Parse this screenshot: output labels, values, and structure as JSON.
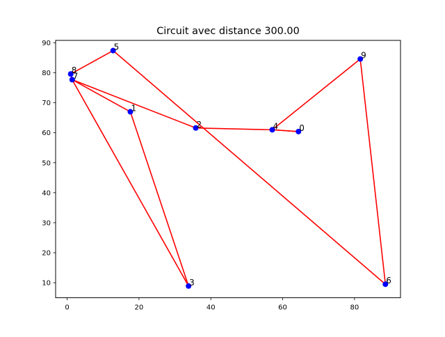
{
  "chart_data": {
    "type": "scatter",
    "title": "Circuit avec distance 300.00",
    "xlabel": "",
    "ylabel": "",
    "xlim": [
      -3.2,
      92.8
    ],
    "ylim": [
      5.0,
      90.8
    ],
    "xticks": [
      0,
      20,
      40,
      60,
      80
    ],
    "yticks": [
      10,
      20,
      30,
      40,
      50,
      60,
      70,
      80,
      90
    ],
    "grid": false,
    "points": [
      {
        "label": "0",
        "x": 64.4,
        "y": 60.4
      },
      {
        "label": "1",
        "x": 17.6,
        "y": 67.0
      },
      {
        "label": "2",
        "x": 35.8,
        "y": 61.6
      },
      {
        "label": "3",
        "x": 33.8,
        "y": 8.9
      },
      {
        "label": "4",
        "x": 57.1,
        "y": 61.0
      },
      {
        "label": "5",
        "x": 12.8,
        "y": 87.4
      },
      {
        "label": "6",
        "x": 88.6,
        "y": 9.5
      },
      {
        "label": "7",
        "x": 1.4,
        "y": 77.7
      },
      {
        "label": "8",
        "x": 1.0,
        "y": 79.6
      },
      {
        "label": "9",
        "x": 81.6,
        "y": 84.6
      }
    ],
    "tour": [
      0,
      4,
      9,
      6,
      5,
      8,
      7,
      2,
      4,
      0
    ],
    "extra_edges": [
      [
        7,
        1
      ],
      [
        1,
        3
      ],
      [
        3,
        7
      ]
    ],
    "colors": {
      "points": "#0000ff",
      "edges": "#ff0000",
      "axes": "#000000"
    }
  }
}
